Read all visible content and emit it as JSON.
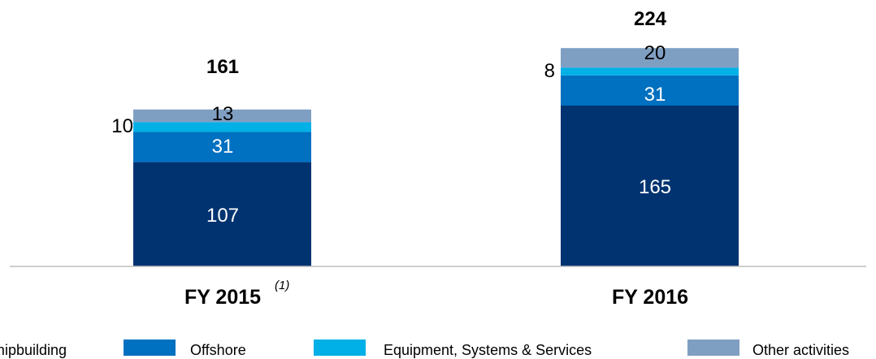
{
  "chart_data": {
    "type": "stacked-bar",
    "categories": [
      "FY 2015",
      "FY 2016"
    ],
    "category_footnotes": [
      "(1)",
      ""
    ],
    "totals": [
      161,
      224
    ],
    "series": [
      {
        "name": "Shipbuilding",
        "color": "#003370",
        "values": [
          107,
          165
        ]
      },
      {
        "name": "Offshore",
        "color": "#0070C0",
        "values": [
          31,
          31
        ]
      },
      {
        "name": "Equipment, Systems & Services",
        "color": "#00B0E6",
        "values": [
          10,
          8
        ]
      },
      {
        "name": "Other activities",
        "color": "#7F9FC2",
        "values": [
          13,
          20
        ]
      }
    ],
    "ylim": [
      0,
      230
    ],
    "grid": false,
    "legend_position": "bottom"
  }
}
